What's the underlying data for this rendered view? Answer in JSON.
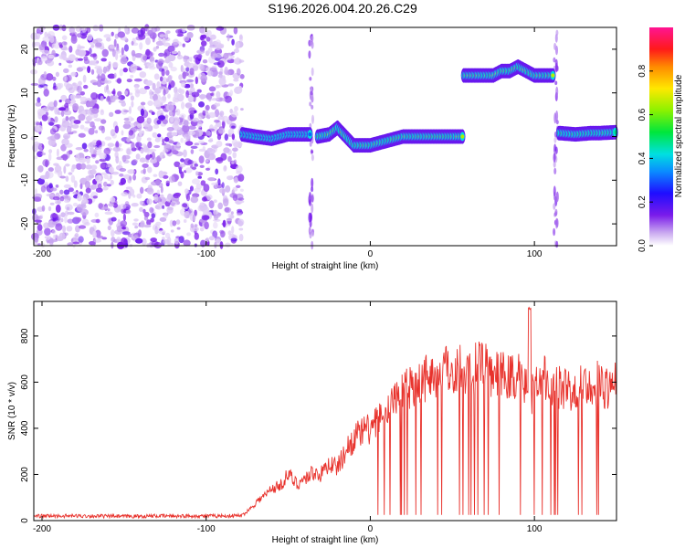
{
  "title": "S196.2026.004.20.26.C29",
  "colors": {
    "snr_line": "#e8322c",
    "axis": "#000000",
    "background": "#ffffff"
  },
  "chart_data": [
    {
      "type": "heatmap",
      "name": "spectrogram",
      "xlabel": "Height of straight line (km)",
      "ylabel": "Frequency (Hz)",
      "xlim": [
        -205,
        150
      ],
      "ylim": [
        -25,
        25
      ],
      "x_ticks": [
        -200,
        -100,
        0,
        100
      ],
      "x_tick_labels": [
        "-200",
        "-100",
        "0",
        "100"
      ],
      "y_ticks": [
        -20,
        -10,
        0,
        10,
        20
      ],
      "y_tick_labels": [
        "-20",
        "-10",
        "0",
        "10",
        "20"
      ],
      "colorbar": {
        "label": "Normalized spectral amplitude",
        "range": [
          0,
          1
        ],
        "ticks": [
          0.0,
          0.2,
          0.4,
          0.6,
          0.8
        ],
        "tick_labels": [
          "0.0",
          "0.2",
          "0.4",
          "0.6",
          "0.8"
        ],
        "colormap": "rainbow (white-violet-blue-cyan-green-yellow-red-magenta)"
      },
      "noise_region_km": [
        -205,
        -78
      ],
      "tracks": [
        {
          "x": [
            -78,
            -70,
            -60,
            -50,
            -40,
            -36
          ],
          "freq": [
            0.5,
            0,
            -0.5,
            0.5,
            0.5,
            0.5
          ],
          "amp": 0.3
        },
        {
          "x": [
            -32,
            -25,
            -20,
            -15,
            -10,
            -5,
            0,
            10,
            20,
            30,
            40,
            45,
            50,
            57
          ],
          "freq": [
            0,
            0.5,
            2,
            0,
            -2,
            -2,
            -2,
            -1,
            0,
            0,
            0,
            0,
            0,
            0
          ],
          "amp": 0.65
        },
        {
          "x": [
            57,
            65,
            75,
            80,
            85,
            90,
            95,
            100,
            108,
            112
          ],
          "freq": [
            14,
            14,
            14,
            15,
            15,
            16,
            15,
            14,
            14,
            14
          ],
          "amp": 0.75
        },
        {
          "x": [
            115,
            125,
            135,
            140,
            150
          ],
          "freq": [
            0.8,
            0.5,
            0.8,
            0.8,
            1
          ],
          "amp": 0.55
        }
      ]
    },
    {
      "type": "line",
      "name": "snr",
      "xlabel": "Height of straight line (km)",
      "ylabel": "SNR (10 * v/v)",
      "xlim": [
        -205,
        150
      ],
      "ylim": [
        0,
        950
      ],
      "x_ticks": [
        -200,
        -100,
        0,
        100
      ],
      "x_tick_labels": [
        "-200",
        "-100",
        "0",
        "100"
      ],
      "y_ticks": [
        0,
        200,
        400,
        600,
        800
      ],
      "y_tick_labels": [
        "0",
        "200",
        "400",
        "600",
        "800"
      ],
      "series": [
        {
          "name": "SNR",
          "x": [
            -205,
            -190,
            -170,
            -150,
            -130,
            -110,
            -90,
            -78,
            -72,
            -68,
            -64,
            -60,
            -55,
            -50,
            -45,
            -40,
            -35,
            -30,
            -25,
            -20,
            -15,
            -10,
            -5,
            0,
            5,
            10,
            15,
            20,
            25,
            30,
            35,
            40,
            45,
            50,
            55,
            60,
            65,
            70,
            75,
            80,
            85,
            90,
            93,
            96,
            98,
            100,
            103,
            106,
            110,
            115,
            120,
            125,
            130,
            135,
            140,
            145,
            150
          ],
          "y": [
            20,
            20,
            20,
            18,
            20,
            20,
            20,
            22,
            60,
            90,
            110,
            140,
            150,
            200,
            160,
            180,
            210,
            200,
            250,
            230,
            300,
            360,
            380,
            400,
            430,
            480,
            540,
            570,
            590,
            610,
            630,
            640,
            650,
            660,
            660,
            650,
            660,
            660,
            640,
            630,
            620,
            630,
            600,
            560,
            500,
            600,
            620,
            610,
            600,
            570,
            570,
            590,
            600,
            590,
            590,
            580,
            590
          ]
        }
      ],
      "dropout_range_km": [
        0,
        140
      ]
    }
  ]
}
